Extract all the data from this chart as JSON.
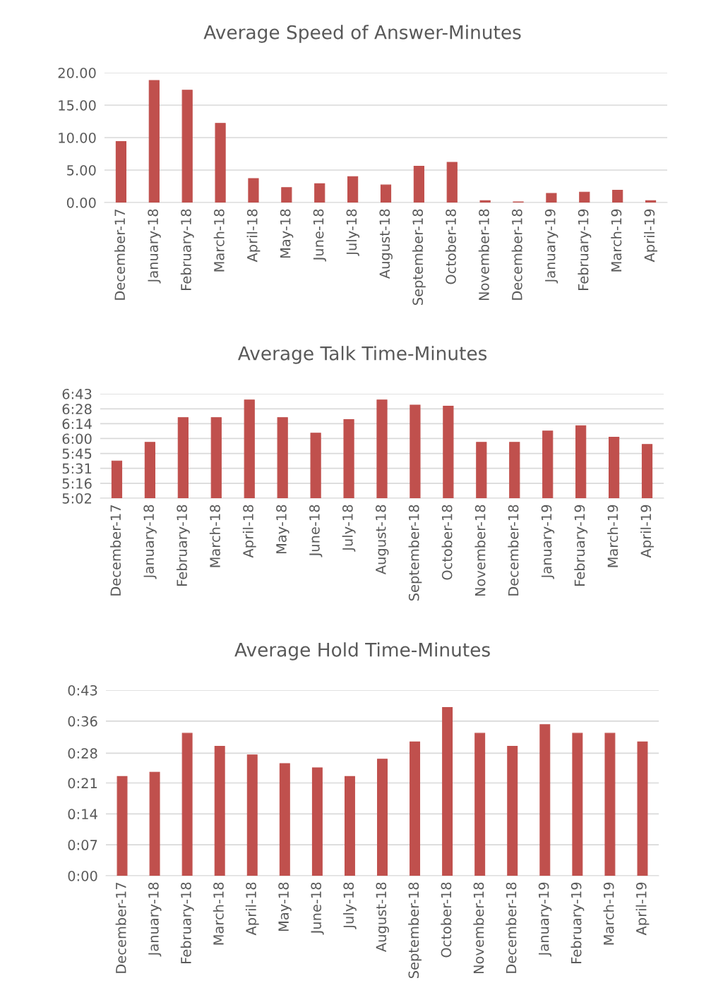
{
  "chart_data": [
    {
      "type": "bar",
      "title": "Average Speed of Answer-Minutes",
      "categories": [
        "December-17",
        "January-18",
        "February-18",
        "March-18",
        "April-18",
        "May-18",
        "June-18",
        "July-18",
        "August-18",
        "September-18",
        "October-18",
        "November-18",
        "December-18",
        "January-19",
        "February-19",
        "March-19",
        "April-19"
      ],
      "series": [
        {
          "color": "#c0504d",
          "values": [
            9.4,
            18.8,
            17.3,
            12.2,
            3.7,
            2.3,
            2.9,
            4.0,
            2.7,
            5.6,
            6.2,
            0.3,
            0.1,
            1.4,
            1.6,
            1.9,
            0.3
          ]
        }
      ],
      "ylim": [
        0,
        20
      ],
      "yticks": [
        {
          "value": 0,
          "label": "0.00"
        },
        {
          "value": 5,
          "label": "5.00"
        },
        {
          "value": 10,
          "label": "10.00"
        },
        {
          "value": 15,
          "label": "15.00"
        },
        {
          "value": 20,
          "label": "20.00"
        }
      ],
      "grid": "y"
    },
    {
      "type": "bar",
      "title": "Average Talk Time-Minutes",
      "categories": [
        "December-17",
        "January-18",
        "February-18",
        "March-18",
        "April-18",
        "May-18",
        "June-18",
        "July-18",
        "August-18",
        "September-18",
        "October-18",
        "November-18",
        "December-18",
        "January-19",
        "February-19",
        "March-19",
        "April-19"
      ],
      "series": [
        {
          "color": "#c0504d",
          "values": [
            338,
            356,
            380,
            380,
            397,
            380,
            365,
            378,
            397,
            392,
            391,
            356,
            356,
            367,
            372,
            361,
            354
          ]
        }
      ],
      "ylim": [
        302,
        403
      ],
      "yticks": [
        {
          "value": 302,
          "label": "5:02"
        },
        {
          "value": 316.4,
          "label": "5:16"
        },
        {
          "value": 330.9,
          "label": "5:31"
        },
        {
          "value": 345.3,
          "label": "5:45"
        },
        {
          "value": 359.7,
          "label": "6:00"
        },
        {
          "value": 374.1,
          "label": "6:14"
        },
        {
          "value": 388.4,
          "label": "6:28"
        },
        {
          "value": 403,
          "label": "6:43"
        }
      ],
      "grid": "y"
    },
    {
      "type": "bar",
      "title": "Average Hold Time-Minutes",
      "categories": [
        "December-17",
        "January-18",
        "February-18",
        "March-18",
        "April-18",
        "May-18",
        "June-18",
        "July-18",
        "August-18",
        "September-18",
        "October-18",
        "November-18",
        "December-18",
        "January-19",
        "February-19",
        "March-19",
        "April-19"
      ],
      "series": [
        {
          "color": "#c0504d",
          "values": [
            23,
            24,
            33,
            30,
            28,
            26,
            25,
            23,
            27,
            31,
            39,
            33,
            30,
            35,
            33,
            33,
            31
          ]
        }
      ],
      "ylim": [
        0,
        43
      ],
      "yticks": [
        {
          "value": 0,
          "label": "0:00"
        },
        {
          "value": 7.17,
          "label": "0:07"
        },
        {
          "value": 14.33,
          "label": "0:14"
        },
        {
          "value": 21.5,
          "label": "0:21"
        },
        {
          "value": 28.4,
          "label": "0:28"
        },
        {
          "value": 35.83,
          "label": "0:36"
        },
        {
          "value": 43,
          "label": "0:43"
        }
      ],
      "grid": "y"
    }
  ]
}
